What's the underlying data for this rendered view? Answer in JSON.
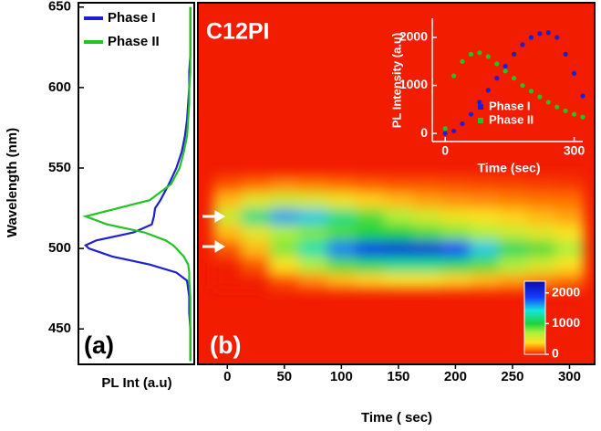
{
  "chart_data": [
    {
      "type": "line",
      "orientation": "vertical",
      "panel_label": "(a)",
      "y_label": "Wavelength (nm)",
      "x_label": "PL Int (a.u)",
      "ylim": [
        428,
        651
      ],
      "yticks": [
        450,
        500,
        550,
        600,
        650
      ],
      "xlim": [
        1.05,
        0
      ],
      "x": [
        430,
        440,
        450,
        460,
        470,
        480,
        485,
        490,
        495,
        500,
        502,
        505,
        510,
        515,
        520,
        525,
        530,
        540,
        550,
        560,
        570,
        580,
        590,
        600,
        610,
        620,
        630,
        640,
        650
      ],
      "series": [
        {
          "name": "Phase I",
          "color": "#1f1fd0",
          "values": [
            0.02,
            0.02,
            0.02,
            0.03,
            0.03,
            0.05,
            0.15,
            0.4,
            0.75,
            0.97,
            1.0,
            0.9,
            0.55,
            0.38,
            0.36,
            0.35,
            0.3,
            0.22,
            0.15,
            0.1,
            0.07,
            0.05,
            0.04,
            0.03,
            0.03,
            0.02,
            0.02,
            0.02,
            0.02
          ]
        },
        {
          "name": "Phase II",
          "color": "#22c322",
          "values": [
            0.02,
            0.02,
            0.02,
            0.02,
            0.02,
            0.03,
            0.03,
            0.04,
            0.08,
            0.15,
            0.18,
            0.25,
            0.45,
            0.8,
            1.0,
            0.7,
            0.4,
            0.2,
            0.12,
            0.08,
            0.05,
            0.04,
            0.03,
            0.03,
            0.02,
            0.02,
            0.02,
            0.02,
            0.02
          ]
        }
      ]
    },
    {
      "type": "heatmap",
      "title": "C12PI",
      "panel_label": "(b)",
      "x_label": "Time ( sec)",
      "xlim": [
        -25,
        322
      ],
      "xticks": [
        0,
        50,
        100,
        150,
        200,
        250,
        300
      ],
      "ylim": [
        428,
        651
      ],
      "x": [
        0,
        25,
        50,
        75,
        100,
        125,
        150,
        175,
        200,
        225,
        250,
        275,
        300
      ],
      "y": [
        480,
        490,
        500,
        510,
        520,
        530,
        540
      ],
      "z": [
        [
          0,
          0,
          100,
          200,
          300,
          350,
          400,
          400,
          350,
          300,
          250,
          200,
          150
        ],
        [
          0,
          100,
          400,
          700,
          900,
          1100,
          1200,
          1200,
          1100,
          900,
          700,
          550,
          400
        ],
        [
          100,
          300,
          800,
          1300,
          1700,
          2000,
          2100,
          2100,
          1900,
          1500,
          1100,
          900,
          700
        ],
        [
          300,
          500,
          700,
          800,
          900,
          1000,
          1000,
          900,
          800,
          700,
          600,
          500,
          400
        ],
        [
          600,
          1200,
          1600,
          1500,
          1200,
          900,
          700,
          550,
          450,
          400,
          350,
          300,
          250
        ],
        [
          300,
          500,
          600,
          550,
          450,
          350,
          300,
          250,
          220,
          200,
          180,
          160,
          150
        ],
        [
          100,
          150,
          200,
          180,
          150,
          120,
          100,
          100,
          90,
          80,
          70,
          60,
          50
        ]
      ],
      "zlim": [
        0,
        2380
      ],
      "zticks": [
        0,
        1000,
        2000
      ]
    },
    {
      "type": "scatter",
      "x_label": "Time (sec)",
      "y_label": "PL Intensity (a.u)",
      "xlim": [
        -30,
        320
      ],
      "xticks": [
        0,
        300
      ],
      "ylim": [
        -170,
        2400
      ],
      "yticks": [
        0,
        1000,
        2000
      ],
      "x": [
        0,
        20,
        40,
        60,
        80,
        100,
        120,
        140,
        160,
        180,
        200,
        220,
        240,
        260,
        280,
        300,
        320
      ],
      "series": [
        {
          "name": "Phase I",
          "color": "#1f1fd0",
          "values": [
            0,
            50,
            200,
            400,
            650,
            900,
            1150,
            1400,
            1650,
            1850,
            2000,
            2080,
            2100,
            2000,
            1650,
            1250,
            780
          ]
        },
        {
          "name": "Phase II",
          "color": "#22c322",
          "values": [
            100,
            1200,
            1500,
            1650,
            1680,
            1600,
            1450,
            1300,
            1150,
            1000,
            880,
            760,
            650,
            550,
            470,
            400,
            340
          ]
        }
      ]
    }
  ]
}
